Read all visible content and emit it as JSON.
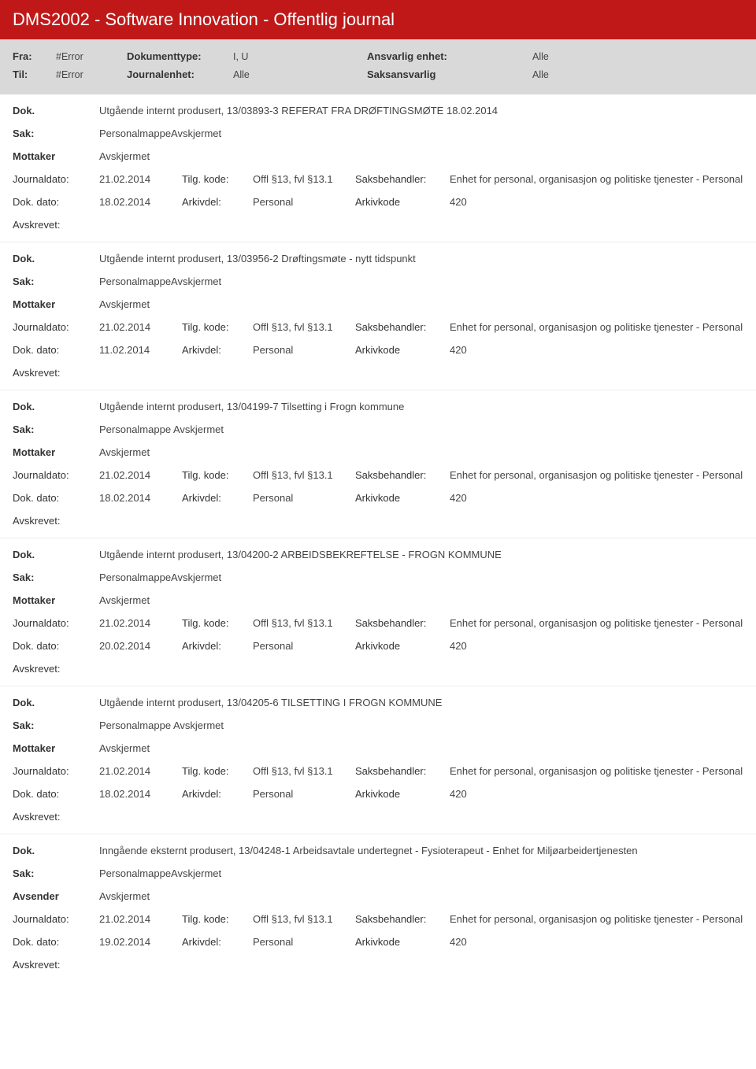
{
  "header": {
    "title": "DMS2002 - Software Innovation - Offentlig journal"
  },
  "filter": {
    "fra_label": "Fra:",
    "fra_value": "#Error",
    "til_label": "Til:",
    "til_value": "#Error",
    "doktype_label": "Dokumenttype:",
    "doktype_value": "I, U",
    "journalenhet_label": "Journalenhet:",
    "journalenhet_value": "Alle",
    "ansvarlig_label": "Ansvarlig enhet:",
    "ansvarlig_value": "Alle",
    "saksansvarlig_label": "Saksansvarlig",
    "saksansvarlig_value": "Alle"
  },
  "labels": {
    "dok": "Dok.",
    "sak": "Sak:",
    "mottaker": "Mottaker",
    "avsender": "Avsender",
    "journaldato": "Journaldato:",
    "tilgkode": "Tilg. kode:",
    "saksbehandler": "Saksbehandler:",
    "dokdato": "Dok. dato:",
    "arkivdel": "Arkivdel:",
    "arkivkode": "Arkivkode",
    "avskrevet": "Avskrevet:"
  },
  "entries": [
    {
      "dok": "Utgående internt produsert, 13/03893-3 REFERAT FRA DRØFTINGSMØTE  18.02.2014",
      "sak": "PersonalmappeAvskjermet",
      "party_label": "Mottaker",
      "party": "Avskjermet",
      "journaldato": "21.02.2014",
      "tilgkode": "Offl §13, fvl §13.1",
      "saksbehandler": "Enhet for personal, organisasjon og politiske tjenester - Personal",
      "dokdato": "18.02.2014",
      "arkivdel": "Personal",
      "arkivkode": "420"
    },
    {
      "dok": "Utgående internt produsert, 13/03956-2 Drøftingsmøte - nytt tidspunkt",
      "sak": "PersonalmappeAvskjermet",
      "party_label": "Mottaker",
      "party": "Avskjermet",
      "journaldato": "21.02.2014",
      "tilgkode": "Offl §13, fvl §13.1",
      "saksbehandler": "Enhet for personal, organisasjon og politiske tjenester - Personal",
      "dokdato": "11.02.2014",
      "arkivdel": "Personal",
      "arkivkode": "420"
    },
    {
      "dok": "Utgående internt produsert, 13/04199-7 Tilsetting i Frogn kommune",
      "sak": "Personalmappe Avskjermet",
      "party_label": "Mottaker",
      "party": "Avskjermet",
      "journaldato": "21.02.2014",
      "tilgkode": "Offl §13, fvl §13.1",
      "saksbehandler": "Enhet for personal, organisasjon og politiske tjenester - Personal",
      "dokdato": "18.02.2014",
      "arkivdel": "Personal",
      "arkivkode": "420"
    },
    {
      "dok": "Utgående internt produsert, 13/04200-2 ARBEIDSBEKREFTELSE - FROGN KOMMUNE",
      "sak": "PersonalmappeAvskjermet",
      "party_label": "Mottaker",
      "party": "Avskjermet",
      "journaldato": "21.02.2014",
      "tilgkode": "Offl §13, fvl §13.1",
      "saksbehandler": "Enhet for personal, organisasjon og politiske tjenester - Personal",
      "dokdato": "20.02.2014",
      "arkivdel": "Personal",
      "arkivkode": "420"
    },
    {
      "dok": "Utgående internt produsert, 13/04205-6 TILSETTING I FROGN KOMMUNE",
      "sak": "Personalmappe Avskjermet",
      "party_label": "Mottaker",
      "party": "Avskjermet",
      "journaldato": "21.02.2014",
      "tilgkode": "Offl §13, fvl §13.1",
      "saksbehandler": "Enhet for personal, organisasjon og politiske tjenester - Personal",
      "dokdato": "18.02.2014",
      "arkivdel": "Personal",
      "arkivkode": "420"
    },
    {
      "dok": "Inngående eksternt produsert, 13/04248-1 Arbeidsavtale undertegnet - Fysioterapeut - Enhet for Miljøarbeidertjenesten",
      "sak": "PersonalmappeAvskjermet",
      "party_label": "Avsender",
      "party": "Avskjermet",
      "journaldato": "21.02.2014",
      "tilgkode": "Offl §13, fvl §13.1",
      "saksbehandler": "Enhet for personal, organisasjon og politiske tjenester - Personal",
      "dokdato": "19.02.2014",
      "arkivdel": "Personal",
      "arkivkode": "420"
    }
  ]
}
